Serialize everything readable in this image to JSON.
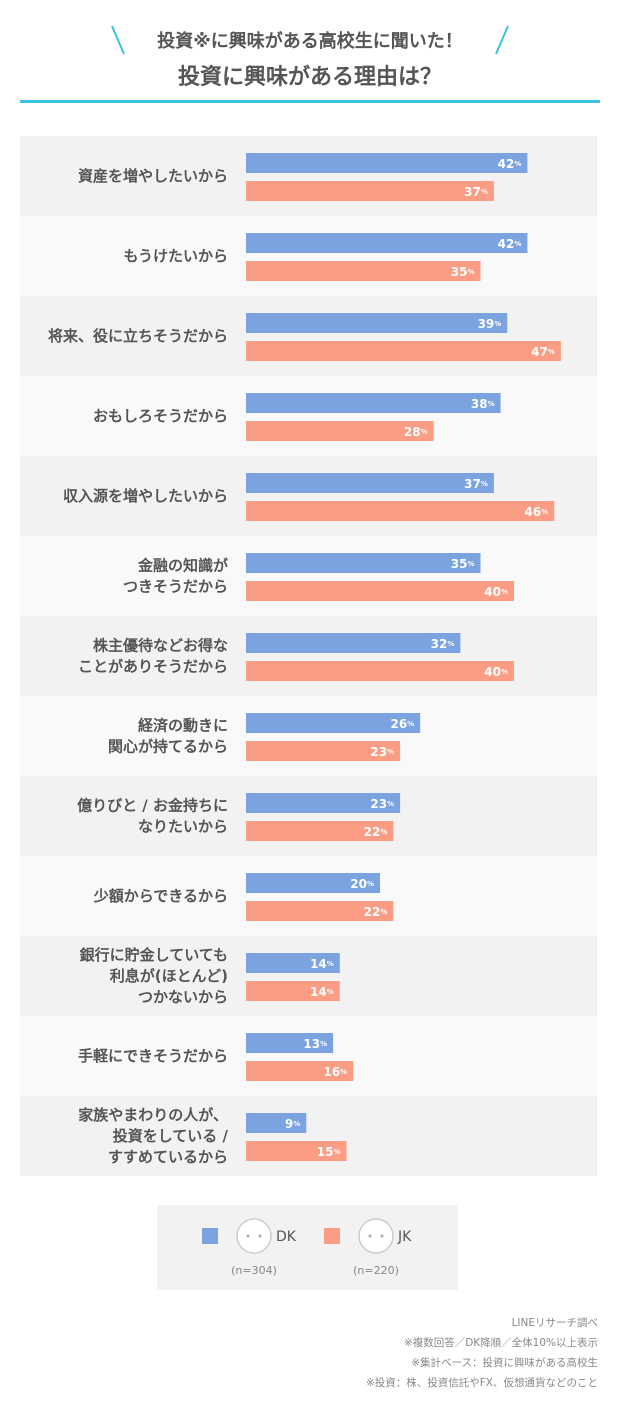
{
  "chart_data": {
    "type": "hbar",
    "title": "投資※に興味がある高校生に聞いた！",
    "subtitle": "投資に興味がある理由は？",
    "categories": [
      "資産を増やしたいから",
      "もうけたいから",
      "将来、役に立ちそうだから",
      "おもしろそうだから",
      "収入源を増やしたいから",
      "金融の知識が\nつきそうだから",
      "株主優待などお得な\nことがありそうだから",
      "経済の動きに\n関心が持てるから",
      "億りびと / お金持ちに\nなりたいから",
      "少額からできるから",
      "銀行に貯金していても\n利息が(ほとんど)\nつかないから",
      "手軽にできそうだから",
      "家族やまわりの人が、\n投資をしている /\nすすめているから"
    ],
    "series": [
      {
        "name": "DK",
        "sample": "(n=304)",
        "color": "#7ba3e0",
        "values": [
          42,
          42,
          39,
          38,
          37,
          35,
          32,
          26,
          23,
          20,
          14,
          13,
          9
        ],
        "value_labels": [
          "42%",
          "42%",
          "39%",
          "38%",
          "37%",
          "35%",
          "32%",
          "26%",
          "23%",
          "20%",
          "14%",
          "13%",
          "9%"
        ]
      },
      {
        "name": "JK",
        "sample": "(n=220)",
        "color": "#fb9d84",
        "values": [
          37,
          35,
          47,
          28,
          46,
          40,
          40,
          23,
          22,
          22,
          14,
          16,
          15
        ],
        "value_labels": [
          "37%",
          "35%",
          "47%",
          "28%",
          "46%",
          "40%",
          "40%",
          "23%",
          "22%",
          "22%",
          "14%",
          "16%",
          "15%"
        ]
      }
    ],
    "notes": [
      "LINEリサーチ調べ",
      "※複数回答／DK降順／全体10%以上表示",
      "※集計ベース：投資に興味がある高校生",
      "※投資：株、投資信託やFX、仮想通貨などのこと"
    ]
  }
}
